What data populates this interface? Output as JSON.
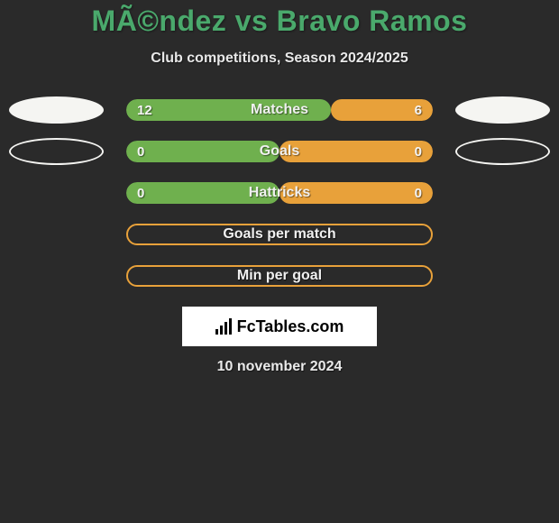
{
  "title": "MÃ©ndez vs Bravo Ramos",
  "subtitle": "Club competitions, Season 2024/2025",
  "date": "10 november 2024",
  "logo_text": "FcTables.com",
  "colors": {
    "background": "#2a2a2a",
    "title": "#4aa96c",
    "text": "#eaeaea",
    "green": "#6fb04e",
    "orange": "#e8a13a",
    "ellipse": "#f5f5f2",
    "logo_bg": "#ffffff"
  },
  "rows": [
    {
      "label": "Matches",
      "left_value": "12",
      "right_value": "6",
      "left_pct": 66.7,
      "right_pct": 33.3,
      "left_ellipse": "filled",
      "right_ellipse": "filled"
    },
    {
      "label": "Goals",
      "left_value": "0",
      "right_value": "0",
      "left_pct": 50,
      "right_pct": 50,
      "left_ellipse": "outline",
      "right_ellipse": "outline"
    },
    {
      "label": "Hattricks",
      "left_value": "0",
      "right_value": "0",
      "left_pct": 50,
      "right_pct": 50,
      "left_ellipse": null,
      "right_ellipse": null
    },
    {
      "label": "Goals per match",
      "left_value": null,
      "right_value": null,
      "outline_only": true,
      "left_ellipse": null,
      "right_ellipse": null
    },
    {
      "label": "Min per goal",
      "left_value": null,
      "right_value": null,
      "outline_only": true,
      "left_ellipse": null,
      "right_ellipse": null
    }
  ]
}
